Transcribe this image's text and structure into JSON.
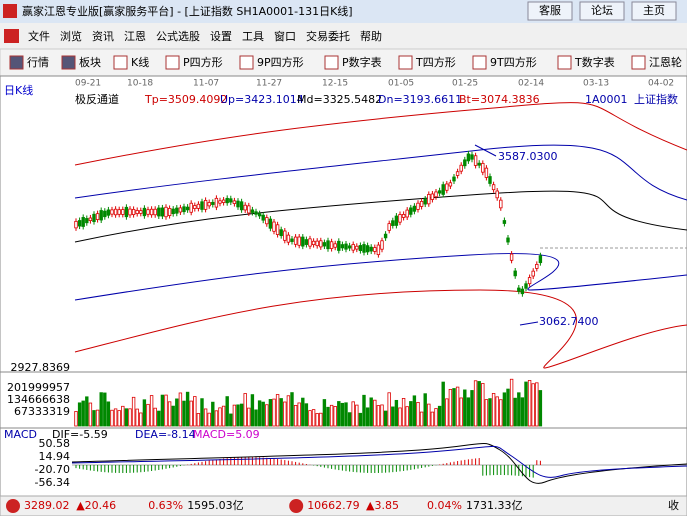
{
  "window": {
    "title": "赢家江恩专业版[赢家服务平台] - [上证指数  SH1A0001-131日K线]",
    "buttons": [
      "客服",
      "论坛",
      "主页"
    ]
  },
  "menu": [
    "文件",
    "浏览",
    "资讯",
    "江恩",
    "公式选股",
    "设置",
    "工具",
    "窗口",
    "交易委托",
    "帮助"
  ],
  "toolbar": [
    "行情",
    "板块",
    "K线",
    "P四方形",
    "9P四方形",
    "P数字表",
    "T四方形",
    "9T四方形",
    "T数字表",
    "江恩轮"
  ],
  "chart": {
    "dates": [
      "09-21",
      "10-18",
      "11-07",
      "11-27",
      "12-15",
      "01-05",
      "01-25",
      "02-14",
      "03-13",
      "04-02"
    ],
    "period": "日K线",
    "indicator": {
      "name": "极反通道",
      "params": [
        "Tp=3509.4092",
        "Up=3423.1014",
        "Md=3325.5482",
        "Dn=3193.6611",
        "Bt=3074.3836"
      ]
    },
    "symbol": "1A0001",
    "symbol_name": "上证指数",
    "annotations": [
      "3587.0300",
      "3062.7400"
    ],
    "price_label": "2927.8369",
    "volume_labels": [
      "201999957",
      "134666638",
      "67333319"
    ],
    "macd": {
      "name": "MACD",
      "params": [
        "DIF=-5.59",
        "DEA=-8.14",
        "MACD=5.09"
      ],
      "labels": [
        "50.58",
        "14.94",
        "-20.70",
        "-56.34"
      ]
    }
  },
  "status": {
    "items": [
      {
        "price": "3289.02",
        "change": "▲20.46",
        "pct": "0.63%",
        "amount": "1595.03亿"
      },
      {
        "price": "10662.79",
        "change": "▲3.85",
        "pct": "0.04%",
        "amount": "1731.33亿"
      }
    ],
    "end": "收"
  }
}
